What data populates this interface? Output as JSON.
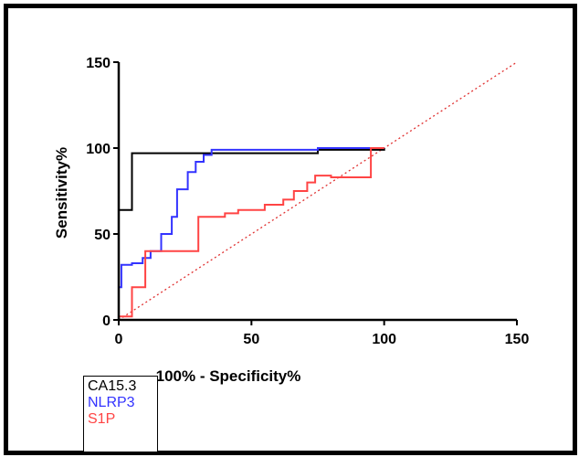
{
  "chart_data": {
    "type": "line",
    "xlabel": "100% - Specificity%",
    "ylabel": "Sensitivity%",
    "xlim": [
      0,
      150
    ],
    "ylim": [
      0,
      150
    ],
    "xticks": [
      "0",
      "50",
      "100",
      "150"
    ],
    "yticks": [
      "0",
      "50",
      "100",
      "150"
    ],
    "grid": false,
    "legend_position": "bottom-left",
    "reference_line": {
      "x": [
        0,
        150
      ],
      "y": [
        0,
        150
      ],
      "color": "#e03030",
      "style": "dotted"
    },
    "series": [
      {
        "name": "CA15.3",
        "color": "#000000",
        "x": [
          0,
          0,
          5,
          5,
          75,
          75,
          100,
          100
        ],
        "y": [
          0,
          64,
          64,
          97,
          97,
          99,
          99,
          100
        ]
      },
      {
        "name": "NLRP3",
        "color": "#3333ff",
        "x": [
          0,
          0,
          1,
          1,
          5,
          5,
          9,
          9,
          12,
          12,
          16,
          16,
          20,
          20,
          22,
          22,
          26,
          26,
          29,
          29,
          32,
          32,
          35,
          35,
          75,
          75,
          100
        ],
        "y": [
          0,
          19,
          19,
          32,
          32,
          33,
          33,
          36,
          36,
          40,
          40,
          50,
          50,
          60,
          60,
          76,
          76,
          86,
          86,
          92,
          92,
          96,
          96,
          99,
          99,
          100,
          100
        ]
      },
      {
        "name": "S1P",
        "color": "#ff4444",
        "x": [
          0,
          0,
          5,
          5,
          10,
          10,
          30,
          30,
          40,
          40,
          45,
          45,
          55,
          55,
          62,
          62,
          66,
          66,
          71,
          71,
          74,
          74,
          80,
          80,
          95,
          95,
          100
        ],
        "y": [
          0,
          2,
          2,
          19,
          19,
          40,
          40,
          60,
          60,
          62,
          62,
          64,
          64,
          67,
          67,
          70,
          70,
          75,
          75,
          80,
          80,
          84,
          84,
          83,
          83,
          100,
          100
        ]
      }
    ]
  }
}
